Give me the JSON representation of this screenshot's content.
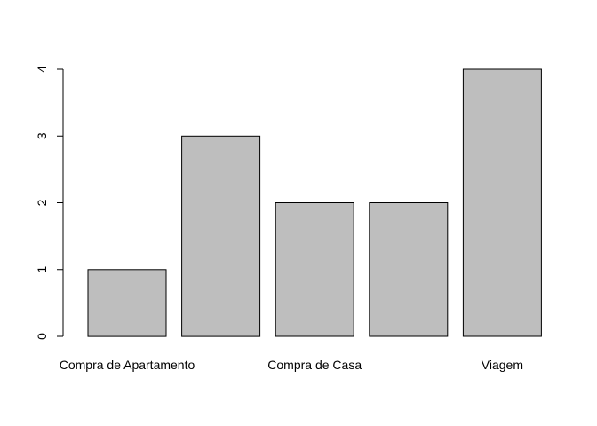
{
  "chart_data": {
    "type": "bar",
    "categories": [
      "Compra de Apartamento",
      "",
      "Compra de Casa",
      "",
      "Viagem"
    ],
    "values": [
      1,
      3,
      2,
      2,
      4
    ],
    "visible_category_labels": [
      "Compra de Apartamento",
      "Compra de Casa",
      "Viagem"
    ],
    "title": "",
    "xlabel": "",
    "ylabel": "",
    "ylim": [
      0,
      4
    ],
    "yticks": [
      0,
      1,
      2,
      3,
      4
    ],
    "ytick_labels": [
      "0",
      "1",
      "2",
      "3",
      "4"
    ],
    "grid": false,
    "legend": "none",
    "bar_fill": "#bebebe",
    "bar_stroke": "#000000"
  }
}
